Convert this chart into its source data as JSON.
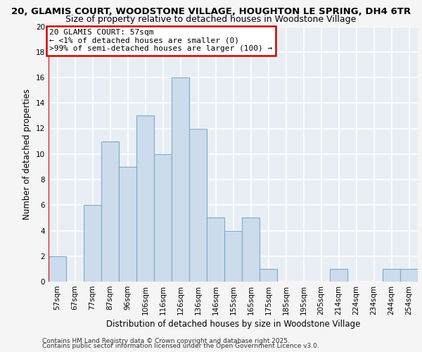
{
  "title_line1": "20, GLAMIS COURT, WOODSTONE VILLAGE, HOUGHTON LE SPRING, DH4 6TR",
  "title_line2": "Size of property relative to detached houses in Woodstone Village",
  "xlabel": "Distribution of detached houses by size in Woodstone Village",
  "ylabel": "Number of detached properties",
  "categories": [
    "57sqm",
    "67sqm",
    "77sqm",
    "87sqm",
    "96sqm",
    "106sqm",
    "116sqm",
    "126sqm",
    "136sqm",
    "146sqm",
    "155sqm",
    "165sqm",
    "175sqm",
    "185sqm",
    "195sqm",
    "205sqm",
    "214sqm",
    "224sqm",
    "234sqm",
    "244sqm",
    "254sqm"
  ],
  "values": [
    2,
    0,
    6,
    11,
    9,
    13,
    10,
    16,
    12,
    5,
    4,
    5,
    1,
    0,
    0,
    0,
    1,
    0,
    0,
    1,
    1
  ],
  "bar_color": "#ccdcec",
  "bar_edgecolor": "#7aaac8",
  "highlight_box_color": "#ffffff",
  "highlight_box_edgecolor": "#cc0000",
  "annotation_line1": "20 GLAMIS COURT: 57sqm",
  "annotation_line2": "← <1% of detached houses are smaller (0)",
  "annotation_line3": ">99% of semi-detached houses are larger (100) →",
  "ylim": [
    0,
    20
  ],
  "yticks": [
    0,
    2,
    4,
    6,
    8,
    10,
    12,
    14,
    16,
    18,
    20
  ],
  "footer_line1": "Contains HM Land Registry data © Crown copyright and database right 2025.",
  "footer_line2": "Contains public sector information licensed under the Open Government Licence v3.0.",
  "background_color": "#e8eef4",
  "grid_color": "#ffffff",
  "fig_background": "#f5f5f5",
  "title_fontsize": 9.5,
  "subtitle_fontsize": 9,
  "axis_label_fontsize": 8.5,
  "tick_fontsize": 7.5,
  "annotation_fontsize": 8,
  "footer_fontsize": 6.5
}
